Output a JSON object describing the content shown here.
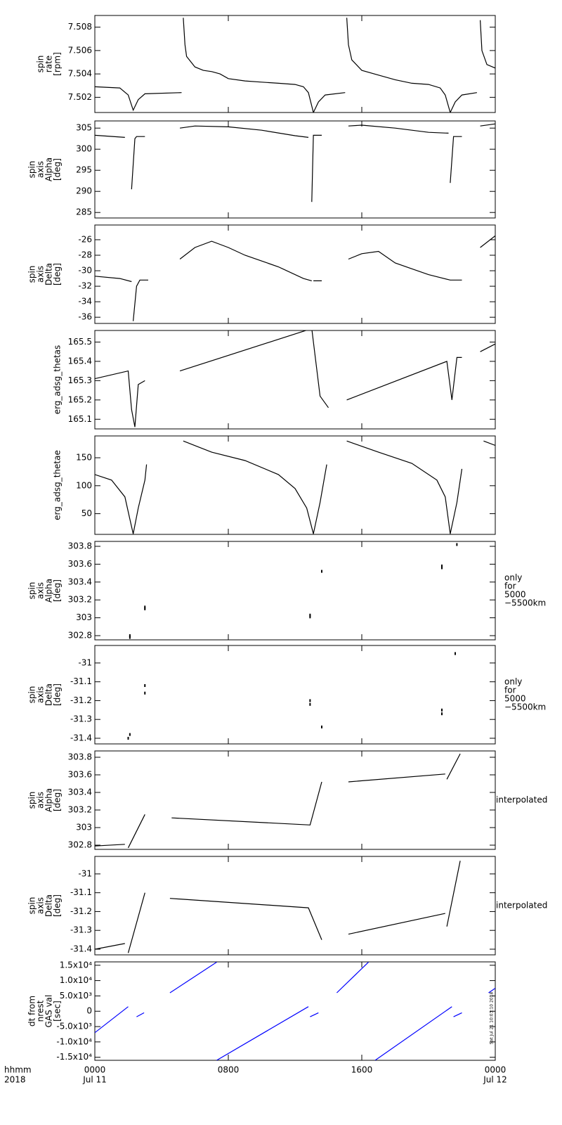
{
  "chart_data": [
    {
      "type": "line",
      "ylabel": [
        "spin",
        "rate",
        "[rpm]"
      ],
      "xlim": [
        0,
        24
      ],
      "xticks": [
        0,
        8,
        16,
        24
      ],
      "ylim": [
        7.5007,
        7.509
      ],
      "yticks": [
        7.502,
        7.504,
        7.506,
        7.508
      ],
      "series": [
        {
          "color": "#000000",
          "x": [
            0,
            1.5,
            2.0,
            2.3,
            2.6,
            3.0,
            5.2,
            null,
            5.3,
            5.4,
            5.5,
            6,
            6.5,
            7,
            7.5,
            8,
            9,
            10,
            11,
            12,
            12.5,
            12.8,
            13.1,
            13.4,
            13.8,
            15.0,
            null,
            15.1,
            15.2,
            15.4,
            16,
            17,
            18,
            19,
            20,
            20.7,
            21.0,
            21.3,
            21.6,
            22,
            22.9,
            null,
            23.1,
            23.2,
            23.5,
            24
          ],
          "values": [
            7.5029,
            7.5028,
            7.5022,
            7.5009,
            7.5018,
            7.5023,
            7.5024,
            null,
            7.5088,
            7.5065,
            7.5055,
            7.5046,
            7.5043,
            7.5042,
            7.504,
            7.5036,
            7.5034,
            7.5033,
            7.5032,
            7.5031,
            7.5029,
            7.5024,
            7.5007,
            7.5016,
            7.5022,
            7.5024,
            null,
            7.5088,
            7.5065,
            7.5052,
            7.5043,
            7.5039,
            7.5035,
            7.5032,
            7.5031,
            7.5028,
            7.5022,
            7.5007,
            7.5016,
            7.5022,
            7.5024,
            null,
            7.5086,
            7.506,
            7.5048,
            7.5045
          ]
        }
      ]
    },
    {
      "type": "line",
      "ylabel": [
        "spin",
        "axis",
        "Alpha",
        "[deg]"
      ],
      "xlim": [
        0,
        24
      ],
      "xticks": [
        0,
        8,
        16,
        24
      ],
      "ylim": [
        283.7,
        306.7
      ],
      "yticks": [
        285,
        290,
        295,
        300,
        305
      ],
      "series": [
        {
          "color": "#000000",
          "x": [
            0,
            1.8,
            null,
            2.2,
            2.4,
            2.5,
            3.0,
            null,
            5.1,
            6,
            8,
            10,
            12,
            12.8,
            null,
            13.0,
            13.1,
            13.6,
            null,
            15.2,
            16,
            18,
            20,
            21.2,
            null,
            21.3,
            21.5,
            22,
            null,
            23.1,
            24
          ],
          "values": [
            303.3,
            302.8,
            null,
            290.5,
            302.5,
            303,
            303,
            null,
            305,
            305.5,
            305.3,
            304.5,
            303.2,
            302.8,
            null,
            287.5,
            303.3,
            303.3,
            null,
            305.5,
            305.7,
            305,
            304,
            303.8,
            null,
            292,
            303,
            303,
            null,
            305.5,
            306
          ]
        }
      ]
    },
    {
      "type": "line",
      "ylabel": [
        "spin",
        "axis",
        "Delta",
        "[deg]"
      ],
      "xlim": [
        0,
        24
      ],
      "xticks": [
        0,
        8,
        16,
        24
      ],
      "ylim": [
        -36.8,
        -24.1
      ],
      "yticks": [
        -36,
        -34,
        -32,
        -30,
        -28,
        -26
      ],
      "series": [
        {
          "color": "#000000",
          "x": [
            0,
            1.5,
            2.2,
            null,
            2.3,
            2.5,
            2.7,
            3.2,
            null,
            5.1,
            6,
            7,
            8,
            9,
            11,
            12.5,
            13,
            null,
            13.1,
            13.6,
            null,
            15.2,
            16,
            17,
            18,
            20,
            21.3,
            22,
            null,
            23.1,
            24
          ],
          "values": [
            -30.7,
            -31,
            -31.4,
            null,
            -36.5,
            -32,
            -31.2,
            -31.2,
            null,
            -28.5,
            -27,
            -26.2,
            -27,
            -28,
            -29.5,
            -31,
            -31.3,
            null,
            -31.3,
            -31.3,
            null,
            -28.5,
            -27.8,
            -27.5,
            -29,
            -30.5,
            -31.2,
            -31.2,
            null,
            -27,
            -25.5
          ]
        }
      ]
    },
    {
      "type": "line",
      "ylabel": [
        "erg_adsg_thetas"
      ],
      "xlim": [
        0,
        24
      ],
      "xticks": [
        0,
        8,
        16,
        24
      ],
      "ylim": [
        165.05,
        165.56
      ],
      "yticks": [
        165.1,
        165.2,
        165.3,
        165.4,
        165.5
      ],
      "series": [
        {
          "color": "#000000",
          "x": [
            0,
            2,
            2.2,
            2.4,
            2.6,
            3,
            null,
            5.1,
            13,
            13.2,
            13.5,
            14,
            null,
            15.1,
            21.1,
            21.4,
            21.7,
            22,
            null,
            23.1,
            24
          ],
          "values": [
            165.31,
            165.35,
            165.15,
            165.06,
            165.28,
            165.3,
            null,
            165.35,
            165.57,
            165.43,
            165.22,
            165.16,
            null,
            165.2,
            165.4,
            165.2,
            165.42,
            165.42,
            null,
            165.45,
            165.49
          ]
        }
      ]
    },
    {
      "type": "line",
      "ylabel": [
        "erg_adsg_thetae"
      ],
      "xlim": [
        0,
        24
      ],
      "xticks": [
        0,
        8,
        16,
        24
      ],
      "ylim": [
        13,
        189
      ],
      "yticks": [
        50,
        100,
        150
      ],
      "series": [
        {
          "color": "#000000",
          "x": [
            0,
            1,
            1.8,
            2.1,
            2.3,
            2.6,
            3,
            3.1,
            null,
            5.3,
            7,
            9,
            11,
            12,
            12.7,
            13.1,
            13.5,
            13.9,
            null,
            15.1,
            17,
            19,
            20.5,
            21,
            21.3,
            21.7,
            22,
            null,
            23.3,
            24
          ],
          "values": [
            120,
            110,
            80,
            40,
            14,
            60,
            110,
            138,
            null,
            180,
            160,
            145,
            120,
            95,
            60,
            14,
            70,
            138,
            null,
            180,
            160,
            140,
            110,
            80,
            14,
            70,
            130,
            null,
            180,
            172
          ]
        }
      ]
    },
    {
      "type": "scatter",
      "ylabel": [
        "spin",
        "axis",
        "Alpha",
        "[deg]"
      ],
      "note": [
        "only",
        "for",
        "5000",
        "−5500km"
      ],
      "xlim": [
        0,
        24
      ],
      "xticks": [
        0,
        8,
        16,
        24
      ],
      "ylim": [
        302.753,
        303.855
      ],
      "yticks": [
        302.8,
        303.0,
        303.2,
        303.4,
        303.6,
        303.8
      ],
      "series": [
        {
          "color": "#000000",
          "x": [
            2.1,
            2.1,
            3.0,
            3.0,
            12.9,
            12.9,
            13.6,
            20.8,
            20.8,
            21.7
          ],
          "values": [
            302.78,
            302.8,
            303.12,
            303.1,
            303.03,
            303.01,
            303.52,
            303.58,
            303.56,
            303.82
          ]
        }
      ]
    },
    {
      "type": "scatter",
      "ylabel": [
        "spin",
        "axis",
        "Delta",
        "[deg]"
      ],
      "note": [
        "only",
        "for",
        "5000",
        "−5500km"
      ],
      "xlim": [
        0,
        24
      ],
      "xticks": [
        0,
        8,
        16,
        24
      ],
      "ylim": [
        -31.43,
        -30.907
      ],
      "yticks": [
        -31.4,
        -31.3,
        -31.2,
        -31.1,
        -31.0
      ],
      "series": [
        {
          "color": "#000000",
          "x": [
            2.0,
            2.1,
            3.0,
            3.0,
            12.9,
            12.9,
            13.6,
            20.8,
            20.8,
            21.6
          ],
          "values": [
            -31.4,
            -31.38,
            -31.12,
            -31.16,
            -31.2,
            -31.22,
            -31.34,
            -31.27,
            -31.25,
            -30.95
          ]
        }
      ]
    },
    {
      "type": "line",
      "ylabel": [
        "spin",
        "axis",
        "Alpha",
        "[deg]"
      ],
      "note": [
        "interpolated"
      ],
      "xlim": [
        0,
        24
      ],
      "xticks": [
        0,
        8,
        16,
        24
      ],
      "ylim": [
        302.752,
        303.872
      ],
      "yticks": [
        302.8,
        303.0,
        303.2,
        303.4,
        303.6,
        303.8
      ],
      "series": [
        {
          "color": "#000000",
          "x": [
            0,
            1.8,
            null,
            2.0,
            3.0,
            null,
            4.6,
            12.9,
            13.6,
            null,
            15.2,
            21.0,
            null,
            21.1,
            21.9
          ],
          "values": [
            302.79,
            302.81,
            null,
            302.77,
            303.15,
            null,
            303.11,
            303.03,
            303.52,
            null,
            303.52,
            303.61,
            null,
            303.55,
            303.84
          ]
        }
      ]
    },
    {
      "type": "line",
      "ylabel": [
        "spin",
        "axis",
        "Delta",
        "[deg]"
      ],
      "note": [
        "interpolated"
      ],
      "xlim": [
        0,
        24
      ],
      "xticks": [
        0,
        8,
        16,
        24
      ],
      "ylim": [
        -31.43,
        -30.907
      ],
      "yticks": [
        -31.4,
        -31.3,
        -31.2,
        -31.1,
        -31.0
      ],
      "series": [
        {
          "color": "#000000",
          "x": [
            0,
            1.8,
            null,
            2.0,
            3.0,
            null,
            4.5,
            12.8,
            13.6,
            null,
            15.2,
            21.0,
            null,
            21.1,
            21.9
          ],
          "values": [
            -31.4,
            -31.37,
            null,
            -31.42,
            -31.1,
            null,
            -31.13,
            -31.18,
            -31.35,
            null,
            -31.32,
            -31.21,
            null,
            -31.28,
            -30.93
          ]
        }
      ]
    },
    {
      "type": "line",
      "ylabel": [
        "dt from",
        "nrest",
        "GAS val",
        "[sec]"
      ],
      "footer_note": "Sat Jul 21 10:03:10 2018",
      "xlim": [
        0,
        24
      ],
      "xticks": [
        {
          "value": 0,
          "label": "0000"
        },
        {
          "value": 8,
          "label": "0800"
        },
        {
          "value": 16,
          "label": "1600"
        },
        {
          "value": 24,
          "label": "0000"
        }
      ],
      "date_labels": [
        {
          "value": 0,
          "label": "Jul 11"
        },
        {
          "value": 24,
          "label": "Jul 12"
        }
      ],
      "xlabel": [
        "hhmm",
        "2018"
      ],
      "ylim": [
        -16000,
        16100
      ],
      "yticks": [
        {
          "value": -15000,
          "label": "-1.5x10⁴"
        },
        {
          "value": -10000,
          "label": "-1.0x10⁴"
        },
        {
          "value": -5000,
          "label": "-5.0x10³"
        },
        0,
        {
          "value": 5000,
          "label": "5.0x10³"
        },
        {
          "value": 10000,
          "label": "1.0x10⁴"
        },
        {
          "value": 15000,
          "label": "1.5x10⁴"
        }
      ],
      "series": [
        {
          "color": "#0000ff",
          "x": [
            0,
            2.0,
            null,
            2.5,
            2.95,
            null,
            4.5,
            7.3,
            null,
            7.3,
            12.8,
            null,
            12.9,
            13.4,
            null,
            14.5,
            16.4,
            null,
            16.8,
            21.4,
            null,
            21.5,
            22.0,
            null,
            23.6,
            24
          ],
          "values": [
            -7000,
            1500,
            null,
            -1800,
            -500,
            null,
            6000,
            16000,
            null,
            -16000,
            1500,
            null,
            -1800,
            -500,
            null,
            6000,
            16000,
            null,
            -16000,
            1500,
            null,
            -1800,
            -500,
            null,
            6000,
            7500
          ]
        }
      ]
    }
  ]
}
